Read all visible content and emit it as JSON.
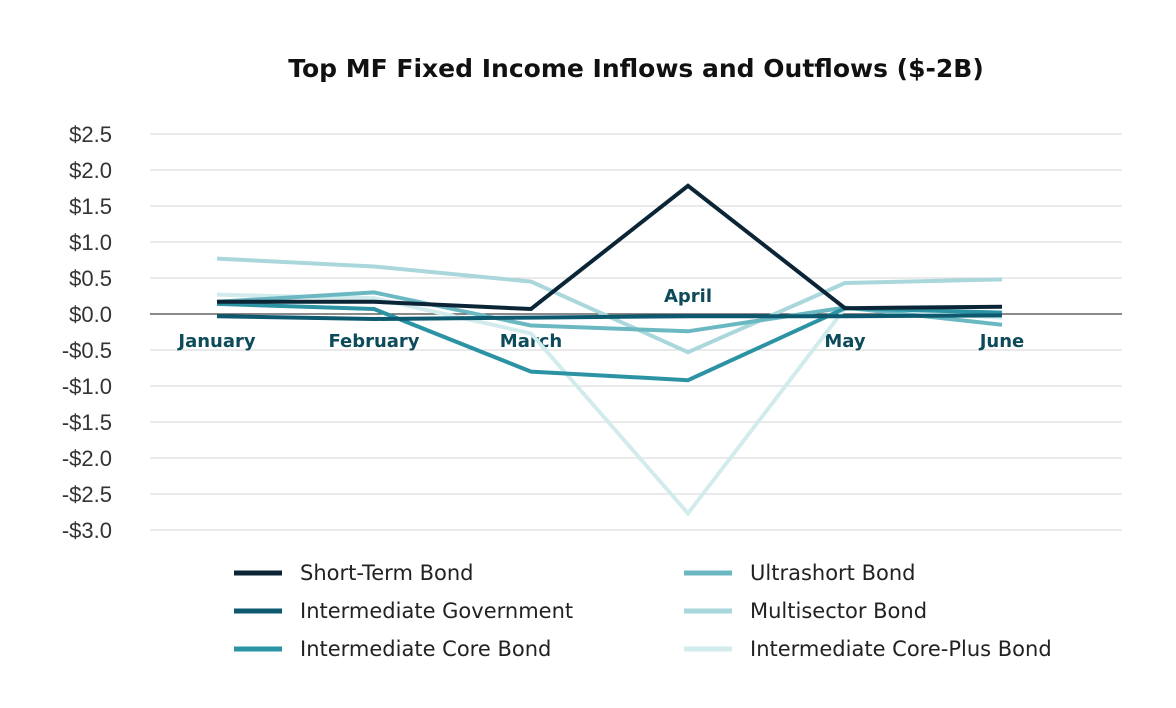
{
  "chart_data": {
    "type": "line",
    "title": "Top MF Fixed Income Inflows and Outflows  ($-2B)",
    "xlabel": "",
    "ylabel": "",
    "categories": [
      "January",
      "February",
      "March",
      "April",
      "May",
      "June"
    ],
    "ylim": [
      -3.0,
      2.5
    ],
    "yticks": [
      2.5,
      2.0,
      1.5,
      1.0,
      0.5,
      0.0,
      -0.5,
      -1.0,
      -1.5,
      -2.0,
      -2.5,
      -3.0
    ],
    "ytick_labels": [
      "$2.5",
      "$2.0",
      "$1.5",
      "$1.0",
      "$0.5",
      "$0.0",
      "-$0.5",
      "-$1.0",
      "-$1.5",
      "-$2.0",
      "-$2.5",
      "-$3.0"
    ],
    "grid": true,
    "legend_position": "bottom",
    "series": [
      {
        "name": "Short-Term Bond",
        "color": "#0b2536",
        "values": [
          0.17,
          0.17,
          0.07,
          1.78,
          0.08,
          0.1
        ]
      },
      {
        "name": "Intermediate Government",
        "color": "#0d5a70",
        "values": [
          -0.03,
          -0.07,
          -0.05,
          -0.03,
          -0.03,
          -0.02
        ]
      },
      {
        "name": "Intermediate Core Bond",
        "color": "#2b93a3",
        "values": [
          0.14,
          0.07,
          -0.8,
          -0.92,
          0.08,
          0.02
        ]
      },
      {
        "name": "Ultrashort Bond",
        "color": "#6cb8c2",
        "values": [
          0.17,
          0.3,
          -0.16,
          -0.24,
          0.09,
          -0.15
        ]
      },
      {
        "name": "Multisector Bond",
        "color": "#a9d7db",
        "values": [
          0.77,
          0.66,
          0.45,
          -0.53,
          0.43,
          0.48
        ]
      },
      {
        "name": "Intermediate Core-Plus Bond",
        "color": "#d2ecee",
        "values": [
          0.27,
          0.22,
          -0.27,
          -2.77,
          0.08,
          -0.05
        ]
      }
    ]
  }
}
